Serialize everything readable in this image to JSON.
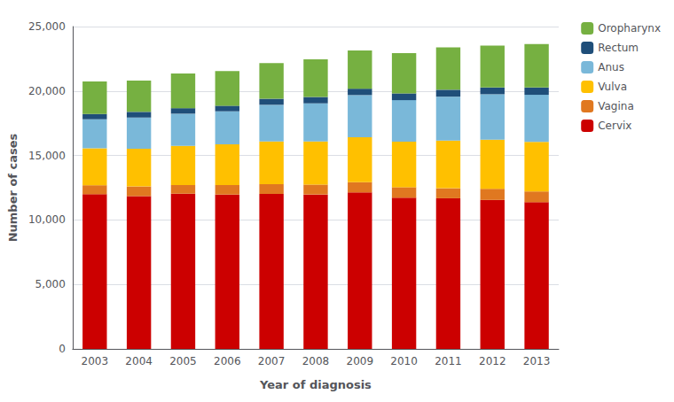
{
  "chart_data": {
    "type": "bar",
    "stacked": true,
    "xlabel": "Year of diagnosis",
    "ylabel": "Number of cases",
    "categories": [
      "2003",
      "2004",
      "2005",
      "2006",
      "2007",
      "2008",
      "2009",
      "2010",
      "2011",
      "2012",
      "2013"
    ],
    "series": [
      {
        "name": "Cervix",
        "color": "#cc0000",
        "values": [
          11994,
          11845,
          12036,
          11969,
          12021,
          11974,
          12134,
          11723,
          11680,
          11552,
          11376
        ]
      },
      {
        "name": "Vagina",
        "color": "#e07820",
        "values": [
          699,
          754,
          671,
          738,
          753,
          770,
          798,
          818,
          779,
          865,
          835
        ]
      },
      {
        "name": "Vulva",
        "color": "#ffc000",
        "values": [
          2866,
          2929,
          3044,
          3154,
          3314,
          3344,
          3482,
          3523,
          3700,
          3804,
          3844
        ]
      },
      {
        "name": "Anus",
        "color": "#7ab8d9",
        "values": [
          2250,
          2415,
          2490,
          2566,
          2841,
          2956,
          3269,
          3228,
          3403,
          3529,
          3653
        ]
      },
      {
        "name": "Rectum",
        "color": "#1f4e79",
        "values": [
          412,
          439,
          429,
          434,
          470,
          493,
          498,
          524,
          536,
          521,
          562
        ]
      },
      {
        "name": "Oropharynx",
        "color": "#76b041",
        "values": [
          2521,
          2434,
          2682,
          2687,
          2768,
          2918,
          2964,
          3130,
          3294,
          3247,
          3381
        ]
      }
    ],
    "ylim": [
      0,
      25000
    ],
    "yticks": [
      0,
      {
        "value": 5000,
        "label": "5,000"
      },
      {
        "value": 10000,
        "label": "10,000"
      },
      {
        "value": 15000,
        "label": "15,000"
      },
      {
        "value": 20000,
        "label": "20,000"
      },
      {
        "value": 25000,
        "label": "25,000"
      }
    ],
    "grid": true,
    "legend": "upper right"
  }
}
